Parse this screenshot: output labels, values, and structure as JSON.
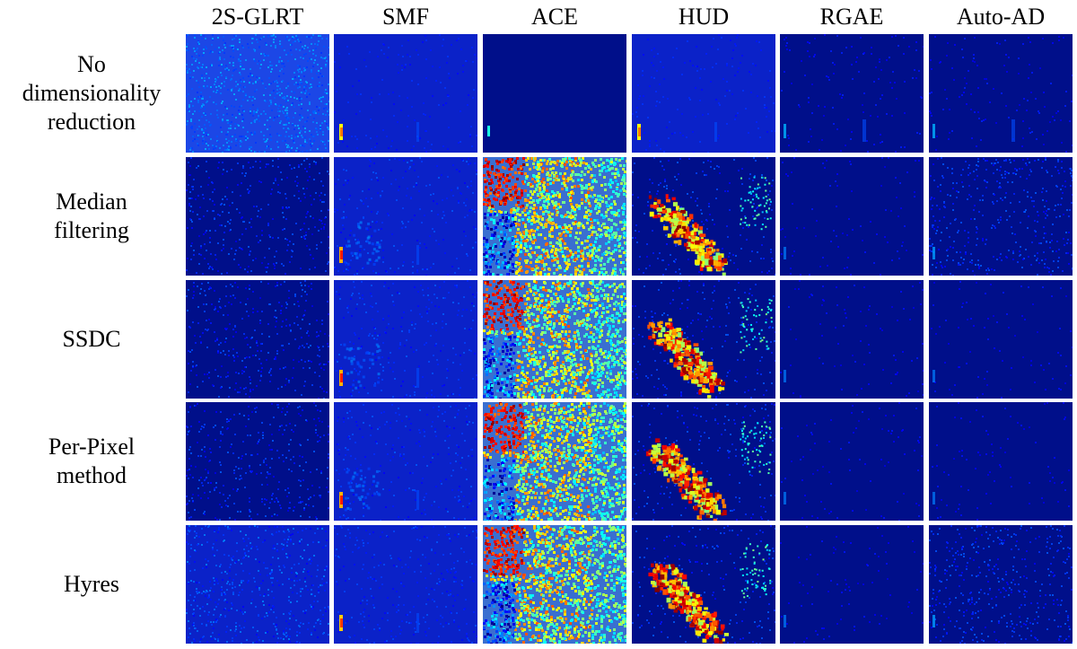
{
  "figure": {
    "column_headers": [
      "2S-GLRT",
      "SMF",
      "ACE",
      "HUD",
      "RGAE",
      "Auto-AD"
    ],
    "row_labels": [
      [
        "No",
        "dimensionality",
        "reduction"
      ],
      [
        "Median",
        "filtering"
      ],
      [
        "SSDC"
      ],
      [
        "Per-Pixel",
        "method"
      ],
      [
        "Hyres"
      ]
    ],
    "colormap": "jet",
    "panel_styles": [
      [
        "speckle-bright",
        "target-faint",
        "flat-dark",
        "target-faint",
        "dark-faint",
        "dark-faint"
      ],
      [
        "speckle-dark",
        "target-clear",
        "jet-dense",
        "hot-sparse",
        "dark-plain",
        "dark-textured"
      ],
      [
        "speckle-dark",
        "target-clear",
        "jet-dense",
        "hot-sparse",
        "dark-plain",
        "dark-plain"
      ],
      [
        "speckle-dark",
        "target-clear",
        "jet-dense",
        "hot-sparse",
        "dark-plain",
        "dark-plain"
      ],
      [
        "speckle-mid",
        "target-mid",
        "jet-dense",
        "hot-sparse",
        "dark-plain",
        "dark-textured"
      ]
    ],
    "style_colors": {
      "bg-deep": "#000f8a",
      "bg-blue": "#0b22c8",
      "bg-bright": "#1c47e6",
      "target-cyan": "#2ee6d0",
      "target-yellow": "#ffe23a",
      "hot-red": "#e81d0e",
      "hot-orange": "#ff8a00"
    }
  }
}
